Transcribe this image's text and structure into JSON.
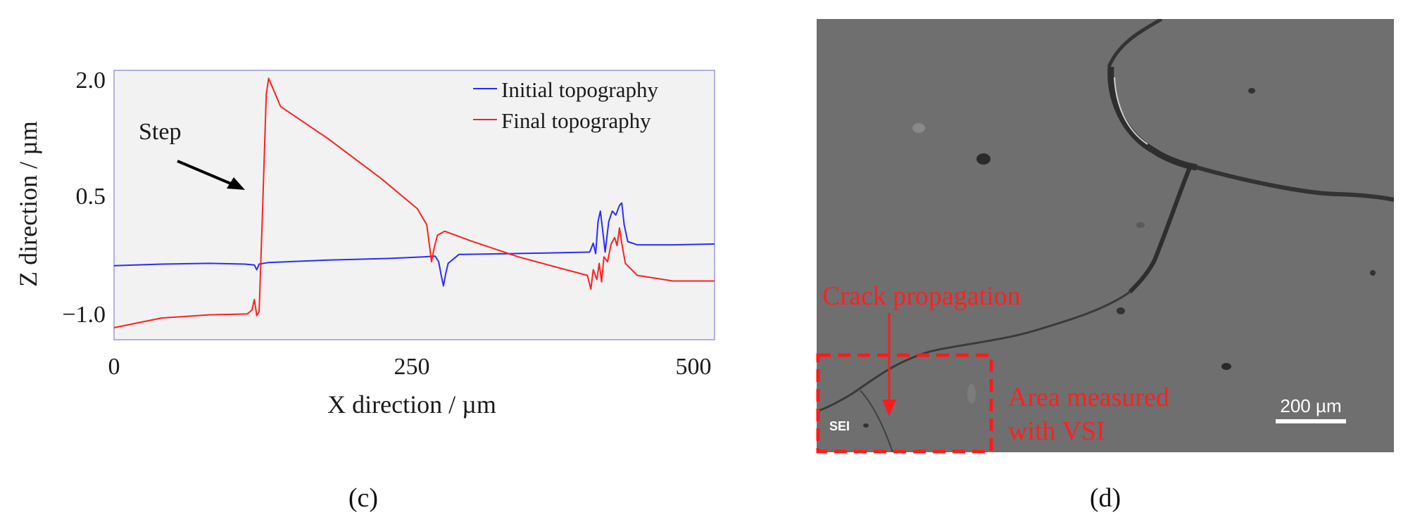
{
  "chart_data": {
    "type": "line",
    "xlabel": "X direction / µm",
    "ylabel": "Z direction / µm",
    "xlim": [
      0,
      505
    ],
    "ylim": [
      -1.25,
      2.1
    ],
    "xticks": [
      "0",
      "250",
      "500"
    ],
    "yticks": [
      "2.0",
      "0.5",
      "−1.0"
    ],
    "xtick_values": [
      0,
      250,
      500
    ],
    "ytick_values": [
      2.0,
      0.5,
      -1.0
    ],
    "grid": false,
    "legend_position": "top-right",
    "annotation": "Step",
    "series": [
      {
        "name": "Initial topography",
        "color": "#2b2bff",
        "points": [
          [
            0,
            -0.33
          ],
          [
            40,
            -0.31
          ],
          [
            80,
            -0.3
          ],
          [
            110,
            -0.31
          ],
          [
            118,
            -0.32
          ],
          [
            120,
            -0.38
          ],
          [
            122,
            -0.31
          ],
          [
            130,
            -0.29
          ],
          [
            180,
            -0.26
          ],
          [
            230,
            -0.24
          ],
          [
            260,
            -0.22
          ],
          [
            270,
            -0.21
          ],
          [
            273,
            -0.28
          ],
          [
            275,
            -0.44
          ],
          [
            277,
            -0.58
          ],
          [
            279,
            -0.42
          ],
          [
            281,
            -0.3
          ],
          [
            290,
            -0.19
          ],
          [
            330,
            -0.18
          ],
          [
            370,
            -0.17
          ],
          [
            400,
            -0.16
          ],
          [
            403,
            -0.05
          ],
          [
            405,
            -0.18
          ],
          [
            407,
            0.22
          ],
          [
            409,
            0.35
          ],
          [
            411,
            0.1
          ],
          [
            413,
            -0.16
          ],
          [
            416,
            0.22
          ],
          [
            419,
            0.35
          ],
          [
            422,
            0.3
          ],
          [
            425,
            0.42
          ],
          [
            427,
            0.45
          ],
          [
            429,
            0.18
          ],
          [
            432,
            -0.03
          ],
          [
            440,
            -0.07
          ],
          [
            470,
            -0.07
          ],
          [
            505,
            -0.06
          ]
        ]
      },
      {
        "name": "Final topography",
        "color": "#ff2020",
        "points": [
          [
            0,
            -1.1
          ],
          [
            40,
            -0.98
          ],
          [
            80,
            -0.94
          ],
          [
            112,
            -0.93
          ],
          [
            116,
            -0.88
          ],
          [
            118,
            -0.75
          ],
          [
            120,
            -0.95
          ],
          [
            122,
            -0.9
          ],
          [
            125,
            0.4
          ],
          [
            128,
            1.8
          ],
          [
            130,
            2.0
          ],
          [
            140,
            1.65
          ],
          [
            180,
            1.25
          ],
          [
            225,
            0.75
          ],
          [
            255,
            0.38
          ],
          [
            263,
            0.18
          ],
          [
            265,
            -0.05
          ],
          [
            267,
            -0.28
          ],
          [
            269,
            -0.12
          ],
          [
            272,
            0.05
          ],
          [
            278,
            0.1
          ],
          [
            300,
            -0.02
          ],
          [
            340,
            -0.22
          ],
          [
            380,
            -0.38
          ],
          [
            398,
            -0.45
          ],
          [
            401,
            -0.62
          ],
          [
            403,
            -0.38
          ],
          [
            406,
            -0.5
          ],
          [
            408,
            -0.3
          ],
          [
            410,
            -0.53
          ],
          [
            412,
            -0.22
          ],
          [
            415,
            -0.28
          ],
          [
            418,
            -0.06
          ],
          [
            421,
            0.02
          ],
          [
            423,
            -0.08
          ],
          [
            425,
            0.14
          ],
          [
            427,
            -0.05
          ],
          [
            430,
            -0.3
          ],
          [
            440,
            -0.45
          ],
          [
            470,
            -0.52
          ],
          [
            505,
            -0.52
          ]
        ]
      }
    ]
  },
  "panel_c_label": "(c)",
  "panel_d_label": "(d)",
  "micrograph": {
    "crack_label": "Crack propagation",
    "area_label_line1": "Area measured",
    "area_label_line2": "with VSI",
    "sei_label": "SEI",
    "scale_label": "200 µm"
  }
}
